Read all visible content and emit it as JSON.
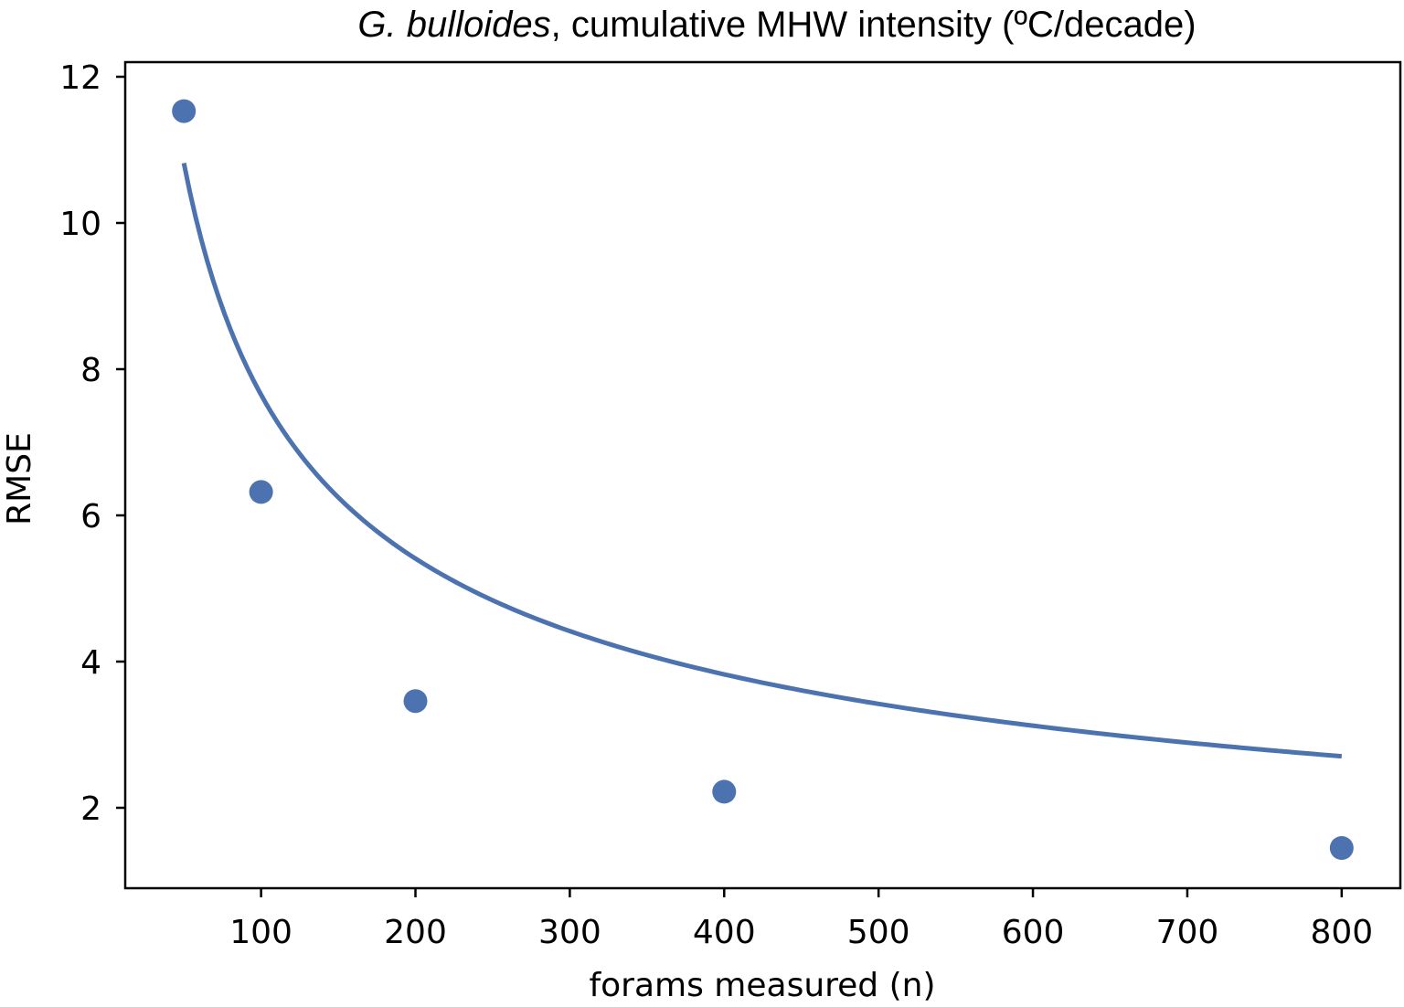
{
  "chart_data": {
    "type": "scatter",
    "title_species": "G. bulloides",
    "title_rest": ", cumulative MHW intensity (ºC/decade)",
    "xlabel": "forams measured (n)",
    "ylabel": "RMSE",
    "xlim": [
      12,
      838
    ],
    "ylim": [
      0.9,
      12.2
    ],
    "xticks": [
      100,
      200,
      300,
      400,
      500,
      600,
      700,
      800
    ],
    "yticks": [
      2,
      4,
      6,
      8,
      10,
      12
    ],
    "grid": false,
    "legend": "none",
    "color": "#4c72b0",
    "points": {
      "x": [
        50,
        100,
        200,
        400,
        800
      ],
      "y": [
        11.53,
        6.32,
        3.46,
        2.22,
        1.45
      ]
    },
    "fit": {
      "form": "a / sqrt(n)",
      "a": 76.5,
      "x_range": [
        50,
        800
      ]
    }
  }
}
